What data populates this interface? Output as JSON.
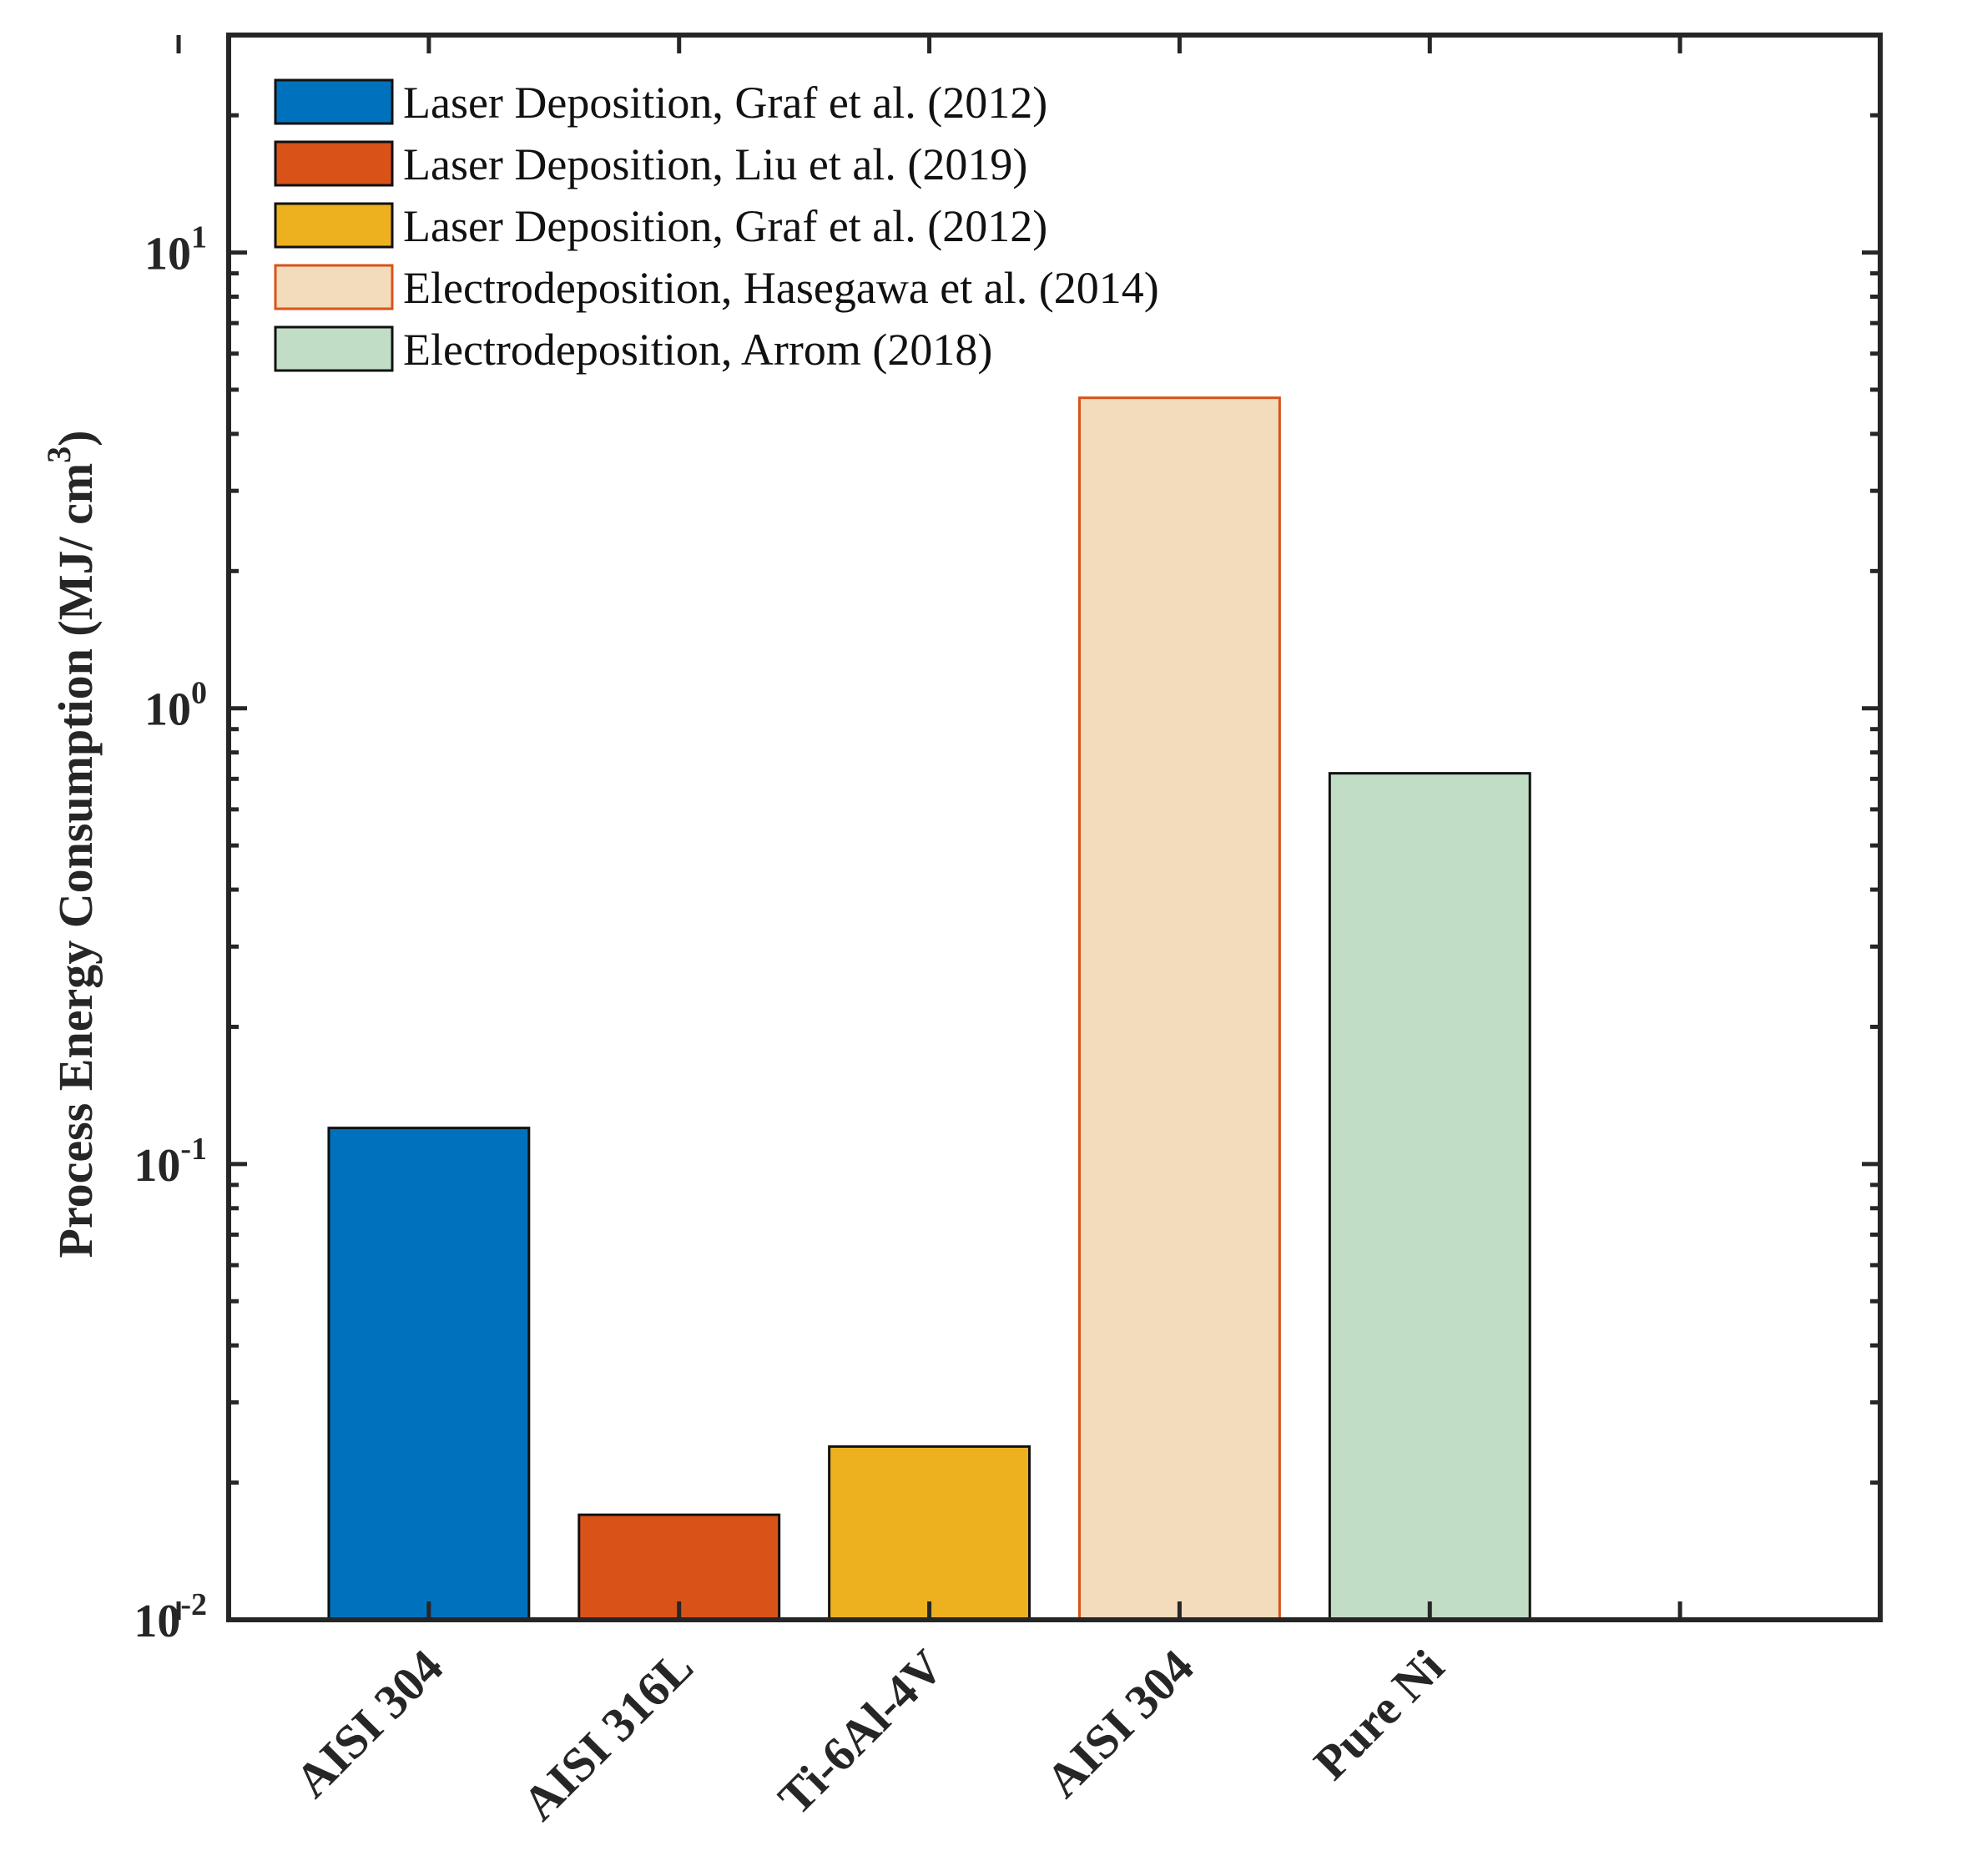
{
  "chart_data": {
    "type": "bar",
    "yscale": "log",
    "ylim": [
      0.01,
      30
    ],
    "xlim": [
      0.2,
      6.8
    ],
    "ylabel": "Process Energy Consumption (MJ/ cm",
    "ylabel_sup": "3",
    "ylabel_close": ")",
    "yticks": [
      {
        "value": 0.01,
        "base": "10",
        "exp": "-2"
      },
      {
        "value": 0.1,
        "base": "10",
        "exp": "-1"
      },
      {
        "value": 1,
        "base": "10",
        "exp": "0"
      },
      {
        "value": 10,
        "base": "10",
        "exp": "1"
      }
    ],
    "categories": [
      "AISI 304",
      "AISI 316L",
      "Ti-6Al-4V",
      "AISI 304",
      "Pure Ni"
    ],
    "x": [
      1,
      2,
      3,
      4,
      5
    ],
    "xticks": [
      0,
      1,
      2,
      3,
      4,
      5,
      6
    ],
    "values": [
      0.12,
      0.017,
      0.024,
      4.8,
      0.72
    ],
    "series": [
      {
        "name": "Laser Deposition, Graf et al. (2012)",
        "color": "#0072bd",
        "edge": "#111111",
        "category_index": 0
      },
      {
        "name": "Laser Deposition, Liu et al. (2019)",
        "color": "#d95319",
        "edge": "#111111",
        "category_index": 1
      },
      {
        "name": "Laser Deposition, Graf et al. (2012)",
        "color": "#edb120",
        "edge": "#111111",
        "category_index": 2
      },
      {
        "name": "Electrodeposition, Hasegawa et al. (2014)",
        "color": "#f2dcbb",
        "edge": "#d95319",
        "category_index": 3
      },
      {
        "name": "Electrodeposition, Arrom (2018)",
        "color": "#c2ddc6",
        "edge": "#111111",
        "category_index": 4
      }
    ],
    "legend_position": "top-left",
    "grid": false
  }
}
